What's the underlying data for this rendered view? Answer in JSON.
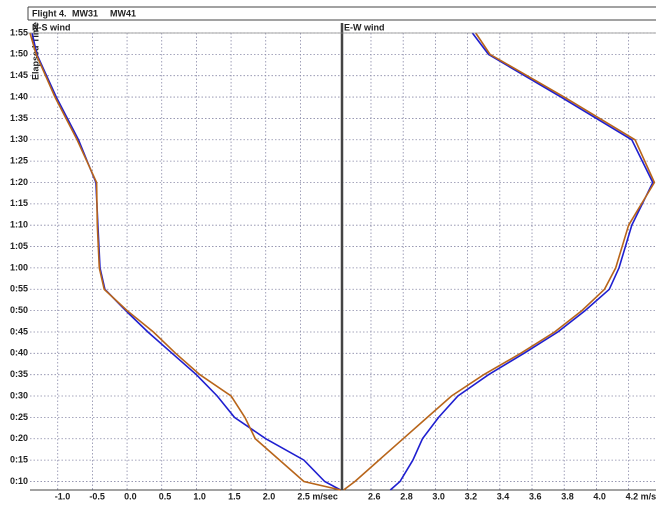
{
  "header": {
    "title": "Flight 4."
  },
  "chart_data": [
    {
      "type": "line",
      "title": "N-S wind",
      "ylabel": "Elapsed Time",
      "grid": true,
      "xlim": [
        -1.4,
        3.1
      ],
      "ylim": [
        8,
        115
      ],
      "xticks": [
        {
          "value": -1.0,
          "label": "-1.0"
        },
        {
          "value": -0.5,
          "label": "-0.5"
        },
        {
          "value": 0.0,
          "label": "0.0"
        },
        {
          "value": 0.5,
          "label": "0.5"
        },
        {
          "value": 1.0,
          "label": "1.0"
        },
        {
          "value": 1.5,
          "label": "1.5"
        },
        {
          "value": 2.0,
          "label": "2.0"
        },
        {
          "value": 2.5,
          "label": "2.5 m/sec"
        }
      ],
      "yticks": [
        {
          "value": 10,
          "label": "0:10"
        },
        {
          "value": 15,
          "label": "0:15"
        },
        {
          "value": 20,
          "label": "0:20"
        },
        {
          "value": 25,
          "label": "0:25"
        },
        {
          "value": 30,
          "label": "0:30"
        },
        {
          "value": 35,
          "label": "0:35"
        },
        {
          "value": 40,
          "label": "0:40"
        },
        {
          "value": 45,
          "label": "0:45"
        },
        {
          "value": 50,
          "label": "0:50"
        },
        {
          "value": 55,
          "label": "0:55"
        },
        {
          "value": 60,
          "label": "1:00"
        },
        {
          "value": 65,
          "label": "1:05"
        },
        {
          "value": 70,
          "label": "1:10"
        },
        {
          "value": 75,
          "label": "1:15"
        },
        {
          "value": 80,
          "label": "1:20"
        },
        {
          "value": 85,
          "label": "1:25"
        },
        {
          "value": 90,
          "label": "1:30"
        },
        {
          "value": 95,
          "label": "1:35"
        },
        {
          "value": 100,
          "label": "1:40"
        },
        {
          "value": 105,
          "label": "1:45"
        },
        {
          "value": 110,
          "label": "1:50"
        },
        {
          "value": 115,
          "label": "1:55"
        }
      ],
      "y": [
        8,
        10,
        15,
        20,
        25,
        30,
        35,
        40,
        45,
        50,
        55,
        60,
        70,
        80,
        90,
        100,
        110,
        115
      ],
      "series": [
        {
          "name": "MW31",
          "color": "#1f1fd0",
          "values": [
            3.08,
            2.85,
            2.55,
            2.0,
            1.55,
            1.3,
            1.0,
            0.65,
            0.3,
            -0.02,
            -0.32,
            -0.39,
            -0.42,
            -0.45,
            -0.7,
            -1.02,
            -1.3,
            -1.37
          ]
        },
        {
          "name": "MW41",
          "color": "#b8651a",
          "values": [
            3.08,
            2.55,
            2.2,
            1.85,
            1.7,
            1.5,
            1.05,
            0.7,
            0.38,
            0.0,
            -0.33,
            -0.4,
            -0.43,
            -0.44,
            -0.72,
            -1.04,
            -1.31,
            -1.4
          ]
        }
      ]
    },
    {
      "type": "line",
      "title": "E-W wind",
      "grid": true,
      "xlim": [
        2.42,
        4.37
      ],
      "ylim": [
        8,
        115
      ],
      "xticks": [
        {
          "value": 2.6,
          "label": "2.6"
        },
        {
          "value": 2.8,
          "label": "2.8"
        },
        {
          "value": 3.0,
          "label": "3.0"
        },
        {
          "value": 3.2,
          "label": "3.2"
        },
        {
          "value": 3.4,
          "label": "3.4"
        },
        {
          "value": 3.6,
          "label": "3.6"
        },
        {
          "value": 3.8,
          "label": "3.8"
        },
        {
          "value": 4.0,
          "label": "4.0"
        },
        {
          "value": 4.2,
          "label": "4.2 m/sec"
        }
      ],
      "y": [
        8,
        10,
        15,
        20,
        25,
        30,
        35,
        40,
        45,
        50,
        55,
        60,
        70,
        80,
        90,
        100,
        110,
        115
      ],
      "series": [
        {
          "name": "MW31",
          "color": "#1f1fd0",
          "values": [
            2.72,
            2.78,
            2.86,
            2.92,
            3.02,
            3.14,
            3.33,
            3.55,
            3.76,
            3.93,
            4.08,
            4.14,
            4.22,
            4.35,
            4.22,
            3.78,
            3.33,
            3.23
          ]
        },
        {
          "name": "MW41",
          "color": "#b8651a",
          "values": [
            2.43,
            2.5,
            2.65,
            2.8,
            2.95,
            3.1,
            3.3,
            3.53,
            3.74,
            3.91,
            4.05,
            4.12,
            4.2,
            4.36,
            4.24,
            3.8,
            3.34,
            3.25
          ]
        }
      ]
    }
  ]
}
